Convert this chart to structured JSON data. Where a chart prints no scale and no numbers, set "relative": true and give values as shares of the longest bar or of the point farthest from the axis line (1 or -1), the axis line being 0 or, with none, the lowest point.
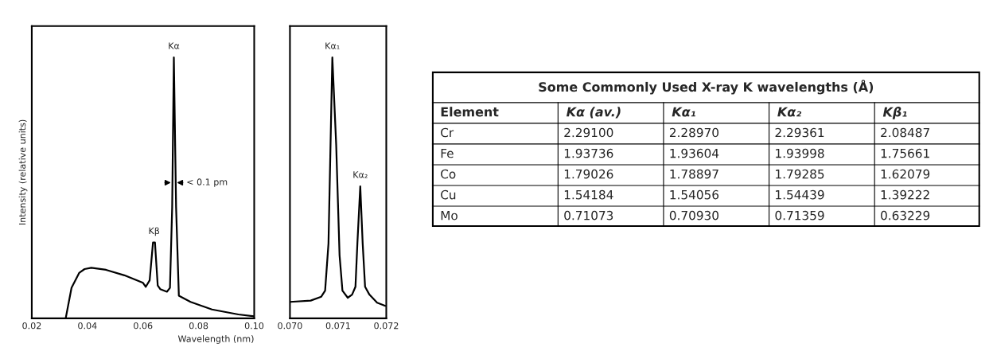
{
  "chart_data": [
    {
      "type": "line",
      "relative": true,
      "xlabel": "Wavelength (nm)",
      "ylabel": "Intensity (relative units)",
      "xlim": [
        0.02,
        0.1
      ],
      "xticks": [
        {
          "value": 0.02,
          "label": "0.02"
        },
        {
          "value": 0.04,
          "label": "0.04"
        },
        {
          "value": 0.06,
          "label": "0.06"
        },
        {
          "value": 0.08,
          "label": "0.08"
        },
        {
          "value": 0.1,
          "label": "0.10"
        }
      ],
      "grid": false,
      "marker": "none",
      "line_style": "solid",
      "series": [
        {
          "color": "#000000",
          "x": [
            0.0322,
            0.0343,
            0.0371,
            0.039,
            0.0414,
            0.0467,
            0.0533,
            0.06,
            0.061,
            0.0624,
            0.0636,
            0.0643,
            0.0653,
            0.0662,
            0.0686,
            0.0697,
            0.0705,
            0.0711,
            0.0719,
            0.0729,
            0.0771,
            0.0848,
            0.0943,
            0.1
          ],
          "values": [
            0,
            0.117,
            0.175,
            0.189,
            0.194,
            0.186,
            0.165,
            0.136,
            0.121,
            0.146,
            0.291,
            0.291,
            0.126,
            0.112,
            0.102,
            0.117,
            0.427,
            1.0,
            0.427,
            0.087,
            0.063,
            0.034,
            0.015,
            0.008
          ]
        }
      ],
      "annotations": [
        {
          "text": "Kα",
          "x": 0.0711,
          "y": 1.0
        },
        {
          "text": "Kβ",
          "x": 0.064,
          "y": 0.291
        },
        {
          "text": "< 0.1 pm",
          "x": 0.0711,
          "y": 0.52
        }
      ]
    },
    {
      "type": "line",
      "relative": true,
      "xlim": [
        0.07,
        0.072
      ],
      "xticks": [
        {
          "value": 0.07,
          "label": "0.070"
        },
        {
          "value": 0.071,
          "label": "0.071"
        },
        {
          "value": 0.072,
          "label": "0.072"
        }
      ],
      "grid": false,
      "marker": "none",
      "line_style": "solid",
      "series": [
        {
          "color": "#000000",
          "x": [
            0.07,
            0.07043,
            0.07065,
            0.07073,
            0.0708,
            0.07088,
            0.07096,
            0.07103,
            0.07109,
            0.0712,
            0.07129,
            0.07136,
            0.0714,
            0.07146,
            0.07151,
            0.07156,
            0.07165,
            0.07181,
            0.07198
          ],
          "values": [
            0.063,
            0.068,
            0.083,
            0.106,
            0.287,
            1.0,
            0.665,
            0.242,
            0.106,
            0.079,
            0.091,
            0.121,
            0.287,
            0.506,
            0.287,
            0.121,
            0.091,
            0.06,
            0.048
          ]
        }
      ],
      "annotations": [
        {
          "text": "Kα₁",
          "x": 0.07088,
          "y": 1.0
        },
        {
          "text": "Kα₂",
          "x": 0.07146,
          "y": 0.506
        }
      ]
    },
    {
      "type": "other",
      "title": "Some Commonly Used X-ray K wavelengths (Å)",
      "categories": [
        "Element",
        "Kα (av.)",
        "Kα₁",
        "Kα₂",
        "Kβ₁"
      ],
      "y_categories": [
        "Cr",
        "Fe",
        "Co",
        "Cu",
        "Mo"
      ],
      "cell_labels": [
        [
          "2.29100",
          "2.28970",
          "2.29361",
          "2.08487"
        ],
        [
          "1.93736",
          "1.93604",
          "1.93998",
          "1.75661"
        ],
        [
          "1.79026",
          "1.78897",
          "1.79285",
          "1.62079"
        ],
        [
          "1.54184",
          "1.54056",
          "1.54439",
          "1.39222"
        ],
        [
          "0.71073",
          "0.70930",
          "0.71359",
          "0.63229"
        ]
      ]
    }
  ]
}
